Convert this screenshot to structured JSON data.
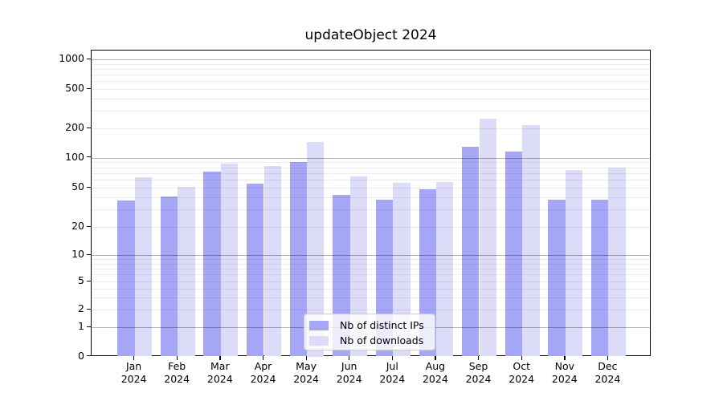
{
  "title": "updateObject 2024",
  "chart_data": {
    "type": "bar",
    "title": "updateObject 2024",
    "categories": [
      "Jan",
      "Feb",
      "Mar",
      "Apr",
      "May",
      "Jun",
      "Jul",
      "Aug",
      "Sep",
      "Oct",
      "Nov",
      "Dec"
    ],
    "year": "2024",
    "series": [
      {
        "name": "Nb of distinct IPs",
        "color": "#a6a6f6",
        "values": [
          37,
          41,
          73,
          55,
          91,
          42,
          38,
          48,
          130,
          115,
          38,
          38
        ]
      },
      {
        "name": "Nb of downloads",
        "color": "#dcdcf9",
        "values": [
          64,
          51,
          88,
          83,
          145,
          65,
          56,
          57,
          250,
          215,
          75,
          80
        ]
      }
    ],
    "xlabel": "",
    "ylabel": "",
    "y_axis": {
      "scale": "log-like",
      "tick_labels": [
        "0",
        "1",
        "2",
        "5",
        "10",
        "20",
        "50",
        "100",
        "200",
        "500",
        "1000"
      ],
      "tick_values": [
        0,
        1,
        2,
        5,
        10,
        20,
        50,
        100,
        200,
        500,
        1000
      ],
      "major_gridline_values": [
        1,
        10,
        100,
        1000
      ],
      "minor_gridline_values": [
        2,
        3,
        4,
        5,
        6,
        7,
        8,
        9,
        20,
        30,
        40,
        50,
        60,
        70,
        80,
        90,
        200,
        300,
        400,
        500,
        600,
        700,
        800,
        900
      ],
      "ylim": [
        0,
        1000
      ]
    },
    "grid": true,
    "legend_position": "inside-bottom-center"
  },
  "colors": {
    "background": "#ffffff",
    "bar_distinct_ips": "#a6a6f6",
    "bar_downloads": "#dcdcf9",
    "axis": "#000000",
    "grid_major": "#b0b0b0",
    "grid_minor": "#e9e9e9",
    "legend_border": "#cccccc"
  }
}
